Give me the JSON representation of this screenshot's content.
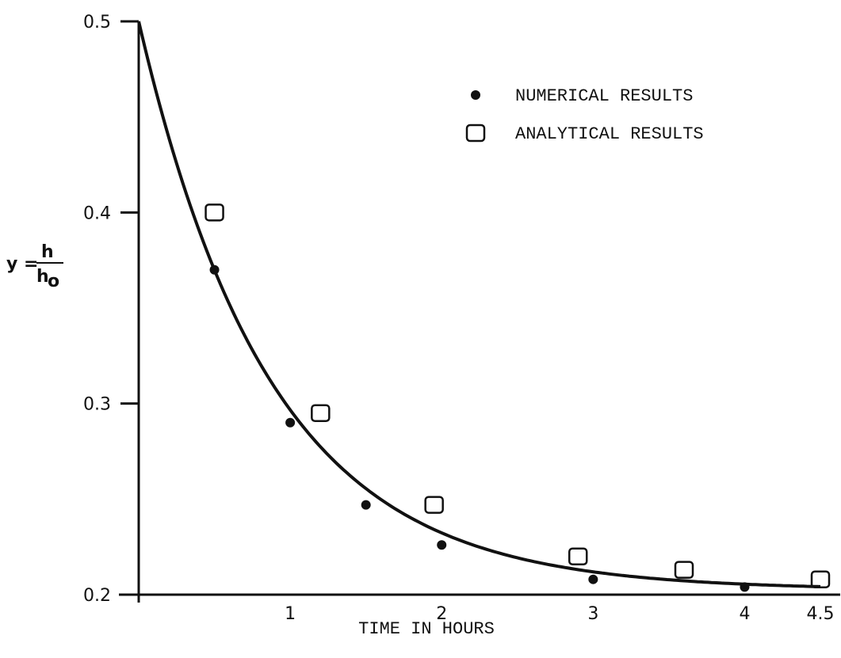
{
  "chart_data": {
    "type": "scatter",
    "xlabel": "TIME IN HOURS",
    "ylabel": {
      "prefix": "y =",
      "numerator": "h",
      "denominator": "h",
      "denominator_sub": "o"
    },
    "xlim": [
      0,
      4.5
    ],
    "ylim": [
      0.2,
      0.5
    ],
    "x_ticks": [
      {
        "value": 1,
        "label": "1"
      },
      {
        "value": 2,
        "label": "2"
      },
      {
        "value": 3,
        "label": "3"
      },
      {
        "value": 4,
        "label": "4"
      },
      {
        "value": 4.5,
        "label": "4.5"
      }
    ],
    "y_ticks": [
      {
        "value": 0.2,
        "label": "0.2"
      },
      {
        "value": 0.3,
        "label": "0.3"
      },
      {
        "value": 0.4,
        "label": "0.4"
      },
      {
        "value": 0.5,
        "label": "0.5"
      }
    ],
    "grid": false,
    "legend_position": "top-right",
    "series": [
      {
        "name": "NUMERICAL RESULTS",
        "marker": "filled-circle",
        "points": [
          [
            0.5,
            0.37
          ],
          [
            1.0,
            0.29
          ],
          [
            1.5,
            0.247
          ],
          [
            2.0,
            0.226
          ],
          [
            3.0,
            0.208
          ],
          [
            4.0,
            0.204
          ]
        ]
      },
      {
        "name": "ANALYTICAL RESULTS",
        "marker": "open-square",
        "points": [
          [
            0.5,
            0.4
          ],
          [
            1.2,
            0.295
          ],
          [
            1.95,
            0.247
          ],
          [
            2.9,
            0.22
          ],
          [
            3.6,
            0.213
          ],
          [
            4.5,
            0.208
          ]
        ]
      }
    ],
    "curve": {
      "model": "exponential-decay",
      "y0": 0.5,
      "asymptote": 0.2025,
      "rate": 1.15,
      "x_end": 4.5
    }
  }
}
